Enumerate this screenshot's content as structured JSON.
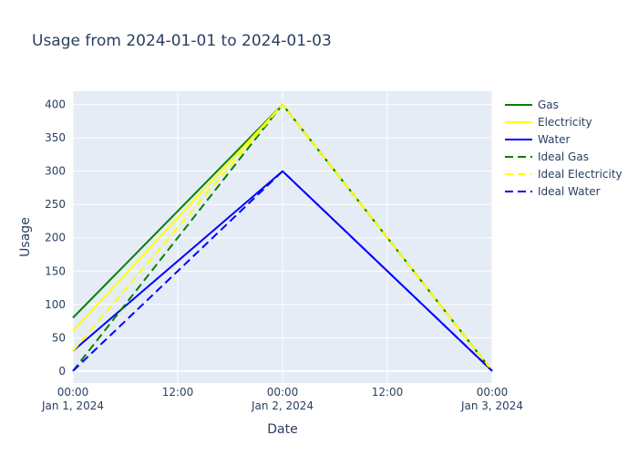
{
  "chart_data": {
    "type": "line",
    "title": "Usage from 2024-01-01 to 2024-01-03",
    "xlabel": "Date",
    "ylabel": "Usage",
    "x": [
      "2024-01-01 00:00",
      "2024-01-02 00:00",
      "2024-01-03 00:00"
    ],
    "xlim": [
      "2024-01-01 00:00",
      "2024-01-03 00:00"
    ],
    "ylim": [
      -18,
      420
    ],
    "x_ticks": [
      {
        "value": "2024-01-01 00:00",
        "time": "00:00",
        "date": "Jan 1, 2024"
      },
      {
        "value": "2024-01-01 12:00",
        "time": "12:00",
        "date": ""
      },
      {
        "value": "2024-01-02 00:00",
        "time": "00:00",
        "date": "Jan 2, 2024"
      },
      {
        "value": "2024-01-02 12:00",
        "time": "12:00",
        "date": ""
      },
      {
        "value": "2024-01-03 00:00",
        "time": "00:00",
        "date": "Jan 3, 2024"
      }
    ],
    "y_ticks": [
      0,
      50,
      100,
      150,
      200,
      250,
      300,
      350,
      400
    ],
    "grid": true,
    "legend_position": "right",
    "series": [
      {
        "name": "Gas",
        "values": [
          80,
          400,
          0
        ],
        "color": "#008000",
        "dash": "solid"
      },
      {
        "name": "Electricity",
        "values": [
          60,
          400,
          0
        ],
        "color": "#ffff00",
        "dash": "solid"
      },
      {
        "name": "Water",
        "values": [
          30,
          300,
          0
        ],
        "color": "#0000ff",
        "dash": "solid"
      },
      {
        "name": "Ideal Gas",
        "values": [
          0,
          400,
          0
        ],
        "color": "#008000",
        "dash": "dash"
      },
      {
        "name": "Ideal Electricity",
        "values": [
          30,
          400,
          0
        ],
        "color": "#ffff00",
        "dash": "dash"
      },
      {
        "name": "Ideal Water",
        "values": [
          0,
          300,
          0
        ],
        "color": "#0000ff",
        "dash": "dash"
      }
    ]
  }
}
